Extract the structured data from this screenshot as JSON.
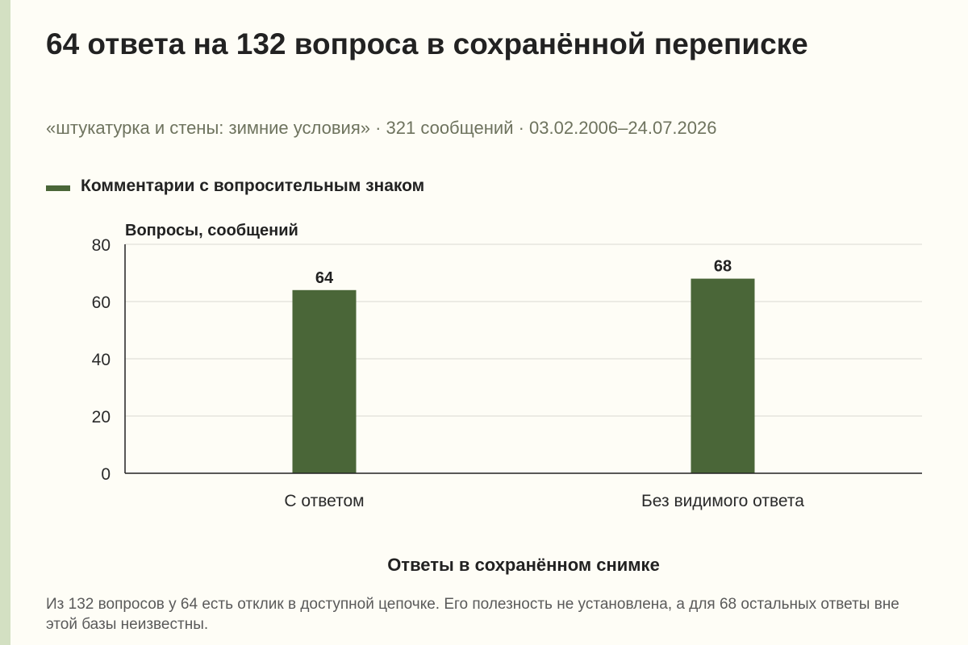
{
  "header": {
    "title": "64 ответа на 132 вопроса в сохранённой переписке",
    "subtitle": "«штукатурка и стены: зимние условия» · 321 сообщений · 03.02.2006–24.07.2026"
  },
  "legend": {
    "label": "Комментарии с вопросительным знаком"
  },
  "colors": {
    "bar": "#4a6638",
    "accent_stripe": "#d3e0c2",
    "background": "#fefdf6"
  },
  "chart_data": {
    "type": "bar",
    "categories": [
      "С ответом",
      "Без видимого ответа"
    ],
    "series": [
      {
        "name": "Комментарии с вопросительным знаком",
        "values": [
          64,
          68
        ]
      }
    ],
    "ylabel": "Вопросы, сообщений",
    "xlabel": "Ответы в сохранённом снимке",
    "ylim": [
      0,
      80
    ],
    "yticks": [
      0,
      20,
      40,
      60,
      80
    ],
    "grid": true,
    "data_labels": true,
    "legend_position": "top-left"
  },
  "footnote": "Из 132 вопросов у 64 есть отклик в доступной цепочке. Его полезность не установлена, а для 68 остальных ответы вне этой базы неизвестны."
}
